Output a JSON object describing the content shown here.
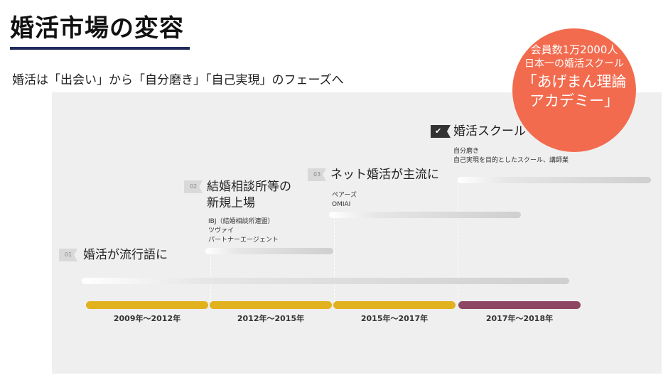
{
  "title": "婚活市場の変容",
  "subtitle": "婚活は「出会い」から「自分磨き」「自己実現」のフェーズへ",
  "badge": {
    "line1": "会員数1万2000人",
    "line2": "日本一の婚活スクール",
    "line3": "「あげまん理論",
    "line4": "アカデミー」",
    "color": "#f26b4e"
  },
  "timeline": {
    "periods": [
      "2009年～2012年",
      "2012年～2015年",
      "2015年～2017年",
      "2017年～2018年"
    ],
    "bar_colors": [
      "#e2b11e",
      "#e2b11e",
      "#e2b11e",
      "#8e4762"
    ]
  },
  "phases": [
    {
      "num": "01",
      "title": "婚活が流行語に"
    },
    {
      "num": "02",
      "title_line1": "結婚相談所等の",
      "title_line2": "新規上場",
      "notes": [
        "IBJ（結婚相談所連盟）",
        "ツヴァイ",
        "パートナーエージェント"
      ]
    },
    {
      "num": "03",
      "title": "ネット婚活が主流に",
      "notes": [
        "ペアーズ",
        "OMIAI"
      ]
    },
    {
      "num": "",
      "title": "婚活スクール",
      "icon": "check-icon",
      "notes": [
        "自分磨き",
        "自己実現を目的としたスクール、講師業"
      ]
    }
  ]
}
